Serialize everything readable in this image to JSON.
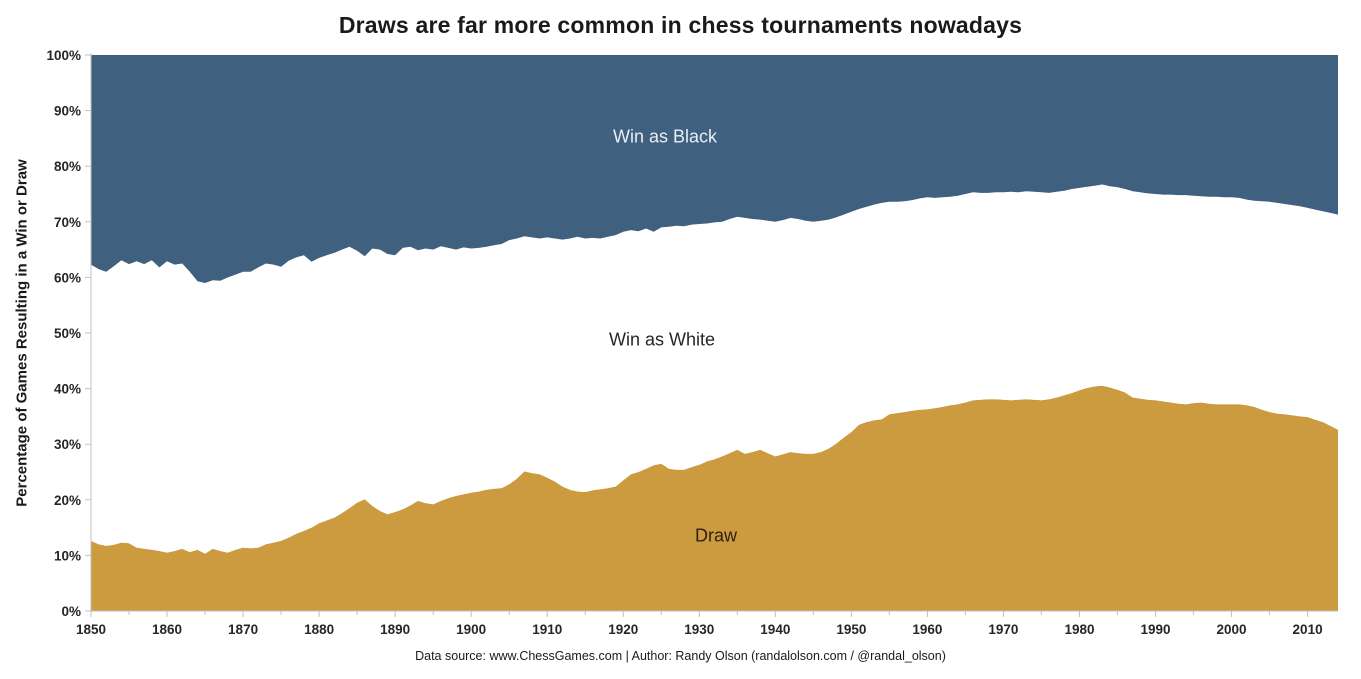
{
  "title": "Draws are far more common in chess tournaments nowadays",
  "y_axis_label": "Percentage of Games Resulting in a Win or Draw",
  "footer": "Data source: www.ChessGames.com | Author: Randy Olson (randalolson.com / @randal_olson)",
  "area_labels": {
    "win_as_black": "Win as Black",
    "win_as_white": "Win as White",
    "draw": "Draw"
  },
  "colors": {
    "win_as_black_area": "#3F607E",
    "win_as_white_area": "#FFFFFF",
    "draw_area": "#CC9A3F",
    "axis": "#BFBFBF",
    "tick_text": "#262626",
    "title_text": "#1A1A1A",
    "label_on_blue": "#E9EEF4",
    "label_on_white": "#262626",
    "label_on_gold": "#2E2310",
    "background": "#FFFFFF"
  },
  "chart_data": {
    "type": "area",
    "stacked": true,
    "title": "Draws are far more common in chess tournaments nowadays",
    "xlabel": "",
    "ylabel": "Percentage of Games Resulting in a Win or Draw",
    "xlim": [
      1850,
      2014
    ],
    "ylim": [
      0,
      100
    ],
    "grid": false,
    "legend_position": "labels inside areas",
    "x_ticks": [
      1850,
      1860,
      1870,
      1880,
      1890,
      1900,
      1910,
      1920,
      1930,
      1940,
      1950,
      1960,
      1970,
      1980,
      1990,
      2000,
      2010
    ],
    "y_tick_labels": [
      "0%",
      "10%",
      "20%",
      "30%",
      "40%",
      "50%",
      "60%",
      "70%",
      "80%",
      "90%",
      "100%"
    ],
    "x": [
      1850,
      1851,
      1852,
      1853,
      1854,
      1855,
      1856,
      1857,
      1858,
      1859,
      1860,
      1861,
      1862,
      1863,
      1864,
      1865,
      1866,
      1867,
      1868,
      1869,
      1870,
      1871,
      1872,
      1873,
      1874,
      1875,
      1876,
      1877,
      1878,
      1879,
      1880,
      1881,
      1882,
      1883,
      1884,
      1885,
      1886,
      1887,
      1888,
      1889,
      1890,
      1891,
      1892,
      1893,
      1894,
      1895,
      1896,
      1897,
      1898,
      1899,
      1900,
      1901,
      1902,
      1903,
      1904,
      1905,
      1906,
      1907,
      1908,
      1909,
      1910,
      1911,
      1912,
      1913,
      1914,
      1915,
      1916,
      1917,
      1918,
      1919,
      1920,
      1921,
      1922,
      1923,
      1924,
      1925,
      1926,
      1927,
      1928,
      1929,
      1930,
      1931,
      1932,
      1933,
      1934,
      1935,
      1936,
      1937,
      1938,
      1939,
      1940,
      1941,
      1942,
      1943,
      1944,
      1945,
      1946,
      1947,
      1948,
      1949,
      1950,
      1951,
      1952,
      1953,
      1954,
      1955,
      1956,
      1957,
      1958,
      1959,
      1960,
      1961,
      1962,
      1963,
      1964,
      1965,
      1966,
      1967,
      1968,
      1969,
      1970,
      1971,
      1972,
      1973,
      1974,
      1975,
      1976,
      1977,
      1978,
      1979,
      1980,
      1981,
      1982,
      1983,
      1984,
      1985,
      1986,
      1987,
      1988,
      1989,
      1990,
      1991,
      1992,
      1993,
      1994,
      1995,
      1996,
      1997,
      1998,
      1999,
      2000,
      2001,
      2002,
      2003,
      2004,
      2005,
      2006,
      2007,
      2008,
      2009,
      2010,
      2011,
      2012,
      2013,
      2014
    ],
    "series": [
      {
        "name": "Draw",
        "color": "#CC9A3F",
        "values": [
          12.6,
          12.0,
          11.7,
          11.9,
          12.3,
          12.2,
          11.4,
          11.2,
          11.0,
          10.8,
          10.5,
          10.8,
          11.2,
          10.6,
          11.0,
          10.3,
          11.2,
          10.8,
          10.5,
          11.0,
          11.4,
          11.3,
          11.4,
          12.0,
          12.3,
          12.6,
          13.2,
          13.9,
          14.4,
          15.0,
          15.8,
          16.3,
          16.8,
          17.6,
          18.5,
          19.5,
          20.1,
          18.9,
          18.0,
          17.4,
          17.8,
          18.3,
          19.0,
          19.8,
          19.4,
          19.2,
          19.8,
          20.3,
          20.7,
          21.0,
          21.3,
          21.5,
          21.8,
          22.0,
          22.1,
          22.8,
          23.8,
          25.1,
          24.8,
          24.6,
          24.0,
          23.3,
          22.4,
          21.8,
          21.5,
          21.4,
          21.7,
          21.9,
          22.1,
          22.4,
          23.5,
          24.6,
          25.0,
          25.6,
          26.2,
          26.5,
          25.6,
          25.4,
          25.4,
          25.9,
          26.3,
          26.9,
          27.3,
          27.8,
          28.4,
          29.0,
          28.3,
          28.6,
          29.0,
          28.4,
          27.8,
          28.2,
          28.6,
          28.4,
          28.3,
          28.3,
          28.6,
          29.2,
          30.1,
          31.2,
          32.2,
          33.5,
          34.0,
          34.3,
          34.5,
          35.4,
          35.6,
          35.8,
          36.0,
          36.2,
          36.3,
          36.5,
          36.7,
          37.0,
          37.2,
          37.5,
          37.9,
          38.0,
          38.1,
          38.1,
          38.0,
          37.9,
          38.0,
          38.1,
          38.0,
          37.9,
          38.1,
          38.4,
          38.8,
          39.2,
          39.7,
          40.1,
          40.4,
          40.5,
          40.2,
          39.8,
          39.3,
          38.4,
          38.2,
          38.0,
          37.9,
          37.7,
          37.5,
          37.3,
          37.2,
          37.4,
          37.5,
          37.3,
          37.2,
          37.2,
          37.2,
          37.2,
          37.0,
          36.7,
          36.2,
          35.8,
          35.5,
          35.4,
          35.2,
          35.0,
          34.9,
          34.4,
          34.0,
          33.3,
          32.6
        ]
      },
      {
        "name": "Win as White",
        "color": "#FFFFFF",
        "values": [
          49.7,
          49.5,
          49.3,
          50.1,
          50.8,
          50.2,
          51.5,
          51.2,
          52.1,
          51.0,
          52.4,
          51.5,
          51.3,
          50.4,
          48.3,
          48.7,
          48.3,
          48.6,
          49.5,
          49.5,
          49.6,
          49.7,
          50.4,
          50.5,
          50.0,
          49.3,
          49.8,
          49.7,
          49.6,
          47.8,
          47.7,
          47.7,
          47.6,
          47.4,
          47.0,
          45.3,
          43.7,
          46.3,
          47.0,
          46.8,
          46.2,
          47.0,
          46.5,
          45.1,
          45.8,
          45.8,
          45.8,
          45.0,
          44.3,
          44.4,
          43.9,
          43.8,
          43.7,
          43.8,
          43.9,
          43.9,
          43.2,
          42.3,
          42.4,
          42.4,
          43.2,
          43.7,
          44.4,
          45.2,
          45.8,
          45.6,
          45.4,
          45.1,
          45.2,
          45.2,
          44.7,
          43.9,
          43.3,
          43.2,
          42.0,
          42.5,
          43.5,
          43.9,
          43.8,
          43.6,
          43.3,
          42.8,
          42.6,
          42.2,
          42.1,
          41.9,
          42.4,
          41.9,
          41.4,
          41.8,
          42.2,
          42.1,
          42.1,
          42.1,
          41.9,
          41.7,
          41.6,
          41.2,
          40.7,
          40.1,
          39.6,
          38.8,
          38.7,
          38.8,
          38.9,
          38.2,
          38.0,
          37.9,
          37.9,
          38.0,
          38.1,
          37.8,
          37.7,
          37.5,
          37.5,
          37.5,
          37.4,
          37.2,
          37.1,
          37.2,
          37.3,
          37.5,
          37.3,
          37.4,
          37.4,
          37.4,
          37.1,
          37.0,
          36.8,
          36.7,
          36.4,
          36.2,
          36.1,
          36.2,
          36.2,
          36.4,
          36.6,
          37.1,
          37.1,
          37.1,
          37.1,
          37.2,
          37.4,
          37.5,
          37.6,
          37.3,
          37.1,
          37.2,
          37.3,
          37.2,
          37.2,
          37.1,
          37.0,
          37.1,
          37.5,
          37.8,
          37.9,
          37.8,
          37.8,
          37.8,
          37.6,
          37.8,
          37.9,
          38.3,
          38.7
        ]
      },
      {
        "name": "Win as Black",
        "color": "#3F607E",
        "values": [
          37.7,
          38.5,
          39.0,
          38.0,
          36.9,
          37.6,
          37.1,
          37.6,
          36.9,
          38.2,
          37.1,
          37.7,
          37.5,
          39.0,
          40.7,
          41.0,
          40.5,
          40.6,
          40.0,
          39.5,
          39.0,
          39.0,
          38.2,
          37.5,
          37.7,
          38.1,
          37.0,
          36.4,
          36.0,
          37.2,
          36.5,
          36.0,
          35.6,
          35.0,
          34.5,
          35.2,
          36.2,
          34.8,
          35.0,
          35.8,
          36.0,
          34.7,
          34.5,
          35.1,
          34.8,
          35.0,
          34.4,
          34.7,
          35.0,
          34.6,
          34.8,
          34.7,
          34.5,
          34.2,
          34.0,
          33.3,
          33.0,
          32.6,
          32.8,
          33.0,
          32.8,
          33.0,
          33.2,
          33.0,
          32.7,
          33.0,
          32.9,
          33.0,
          32.7,
          32.4,
          31.8,
          31.5,
          31.7,
          31.2,
          31.8,
          31.0,
          30.9,
          30.7,
          30.8,
          30.5,
          30.4,
          30.3,
          30.1,
          30.0,
          29.5,
          29.1,
          29.3,
          29.5,
          29.6,
          29.8,
          30.0,
          29.7,
          29.3,
          29.5,
          29.8,
          30.0,
          29.8,
          29.6,
          29.2,
          28.7,
          28.2,
          27.7,
          27.3,
          26.9,
          26.6,
          26.4,
          26.4,
          26.3,
          26.1,
          25.8,
          25.6,
          25.7,
          25.6,
          25.5,
          25.3,
          25.0,
          24.7,
          24.8,
          24.8,
          24.7,
          24.7,
          24.6,
          24.7,
          24.5,
          24.6,
          24.7,
          24.8,
          24.6,
          24.4,
          24.1,
          23.9,
          23.7,
          23.5,
          23.3,
          23.6,
          23.8,
          24.1,
          24.5,
          24.7,
          24.9,
          25.0,
          25.1,
          25.1,
          25.2,
          25.2,
          25.3,
          25.4,
          25.5,
          25.5,
          25.6,
          25.6,
          25.7,
          26.0,
          26.2,
          26.3,
          26.4,
          26.6,
          26.8,
          27.0,
          27.2,
          27.5,
          27.8,
          28.1,
          28.4,
          28.7
        ]
      }
    ]
  }
}
